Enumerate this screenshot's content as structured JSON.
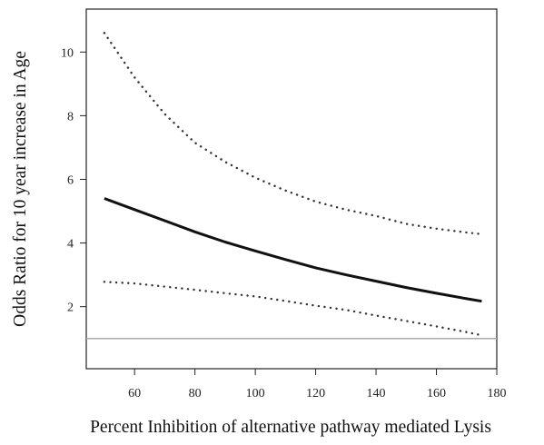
{
  "chart_data": {
    "type": "line",
    "title": "",
    "xlabel": "Percent Inhibition of alternative pathway mediated Lysis",
    "ylabel": "Odds Ratio for 10 year increase in Age",
    "xlim": [
      44,
      180
    ],
    "ylim": [
      0.05,
      11.35
    ],
    "x_ticks": [
      60,
      80,
      100,
      120,
      140,
      160,
      180
    ],
    "y_ticks": [
      2,
      4,
      6,
      8,
      10
    ],
    "grid": false,
    "legend": "none",
    "x": [
      50,
      60,
      70,
      80,
      90,
      100,
      110,
      120,
      130,
      140,
      150,
      160,
      170,
      175
    ],
    "series": [
      {
        "name": "",
        "style": "solid",
        "color": "#111111",
        "values": [
          5.4,
          5.05,
          4.7,
          4.35,
          4.03,
          3.75,
          3.48,
          3.22,
          3.0,
          2.8,
          2.6,
          2.42,
          2.25,
          2.17
        ]
      },
      {
        "name": "",
        "style": "dotted",
        "color": "#333333",
        "values": [
          10.6,
          9.2,
          8.05,
          7.15,
          6.55,
          6.05,
          5.65,
          5.3,
          5.05,
          4.85,
          4.6,
          4.45,
          4.33,
          4.28
        ]
      },
      {
        "name": "",
        "style": "dotted",
        "color": "#333333",
        "values": [
          2.78,
          2.73,
          2.63,
          2.53,
          2.42,
          2.32,
          2.18,
          2.03,
          1.9,
          1.72,
          1.55,
          1.38,
          1.2,
          1.1
        ]
      }
    ],
    "reference_line": {
      "y": 1,
      "color": "#aaaaaa"
    }
  }
}
